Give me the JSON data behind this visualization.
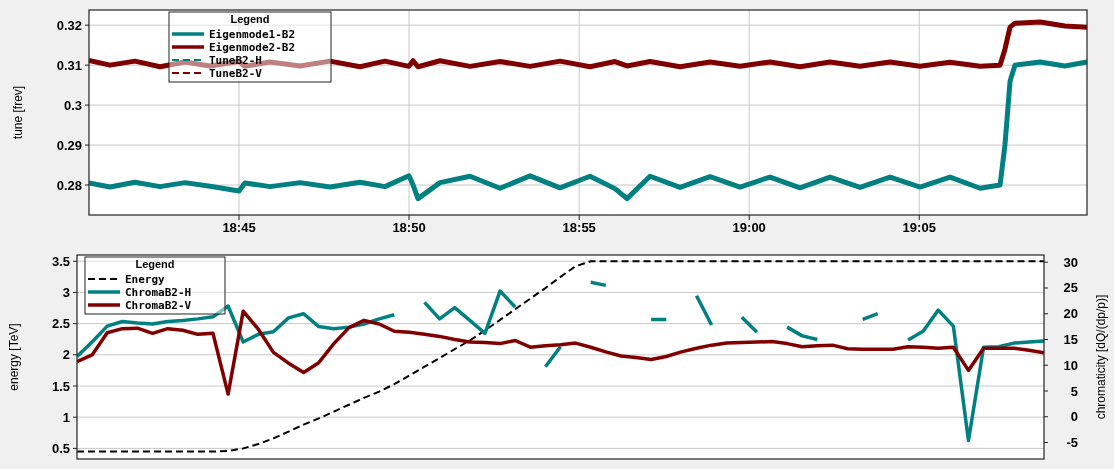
{
  "chart_data": [
    {
      "type": "line",
      "ylabel": "tune [frev]",
      "legend_title": "Legend",
      "legend": "top left",
      "grid": true,
      "marker": "none",
      "xlim": [
        18.6765,
        19.1655
      ],
      "xticks": [
        {
          "value": 18.75,
          "label": "18:45"
        },
        {
          "value": 18.8333,
          "label": "18:50"
        },
        {
          "value": 18.9167,
          "label": "18:55"
        },
        {
          "value": 19.0,
          "label": "19:00"
        },
        {
          "value": 19.0833,
          "label": "19:05"
        }
      ],
      "ylim": [
        0.2725,
        0.3238
      ],
      "yticks": [
        0.28,
        0.29,
        0.3,
        0.31,
        0.32
      ],
      "series": [
        {
          "name": "Eigenmode1-B2",
          "color": "#008080",
          "line_style": "solid",
          "x": [
            18.6765,
            18.6868,
            18.699,
            18.7113,
            18.7235,
            18.7358,
            18.75,
            18.7529,
            18.7652,
            18.7799,
            18.7946,
            18.8093,
            18.8215,
            18.8333,
            18.8353,
            18.8377,
            18.8485,
            18.8632,
            18.8779,
            18.8926,
            18.9073,
            18.922,
            18.9342,
            18.9401,
            18.9514,
            18.9661,
            18.9808,
            18.9955,
            19.0102,
            19.0249,
            19.0396,
            19.0543,
            19.069,
            19.0837,
            19.0984,
            19.1131,
            19.1229,
            19.1253,
            19.1278,
            19.1302,
            19.1425,
            19.1547,
            19.1655
          ],
          "values": [
            0.2805,
            0.2795,
            0.2807,
            0.2796,
            0.2806,
            0.2797,
            0.2785,
            0.2805,
            0.2796,
            0.2806,
            0.2795,
            0.2807,
            0.2796,
            0.2823,
            0.28,
            0.2766,
            0.2806,
            0.2822,
            0.2792,
            0.2823,
            0.2793,
            0.2822,
            0.2791,
            0.2766,
            0.2822,
            0.2794,
            0.2821,
            0.2795,
            0.282,
            0.2793,
            0.282,
            0.2794,
            0.282,
            0.2795,
            0.282,
            0.2792,
            0.28,
            0.29,
            0.306,
            0.31,
            0.3108,
            0.3098,
            0.3108
          ]
        },
        {
          "name": "Eigenmode2-B2",
          "color": "#800000",
          "line_style": "solid",
          "x": [
            18.6765,
            18.6868,
            18.699,
            18.7113,
            18.7235,
            18.7358,
            18.75,
            18.7529,
            18.7652,
            18.7799,
            18.7946,
            18.8093,
            18.8215,
            18.8333,
            18.8353,
            18.8377,
            18.8485,
            18.8632,
            18.8779,
            18.8926,
            18.9073,
            18.922,
            18.9342,
            18.9401,
            18.9514,
            18.9661,
            18.9808,
            18.9955,
            19.0102,
            19.0249,
            19.0396,
            19.0543,
            19.069,
            19.0837,
            19.0984,
            19.1131,
            19.1229,
            19.1253,
            19.1278,
            19.1302,
            19.1425,
            19.1547,
            19.1655
          ],
          "values": [
            0.3112,
            0.31,
            0.311,
            0.3096,
            0.3108,
            0.3098,
            0.3109,
            0.3097,
            0.3108,
            0.3098,
            0.311,
            0.3096,
            0.311,
            0.3097,
            0.3111,
            0.3096,
            0.3111,
            0.3097,
            0.3109,
            0.3097,
            0.311,
            0.3096,
            0.3109,
            0.3098,
            0.3109,
            0.3096,
            0.3108,
            0.3097,
            0.3108,
            0.3096,
            0.3108,
            0.3097,
            0.3108,
            0.3097,
            0.3107,
            0.3097,
            0.31,
            0.314,
            0.3195,
            0.3205,
            0.3208,
            0.3198,
            0.3195
          ]
        },
        {
          "name": "TuneB2-H",
          "color": "#008080",
          "line_style": "dashed"
        },
        {
          "name": "TuneB2-V",
          "color": "#800000",
          "line_style": "dashed"
        }
      ]
    },
    {
      "type": "line",
      "ylabel": "energy [TeV]",
      "y2label": "chromaticity [dQ/(dp/p)]",
      "legend_title": "Legend",
      "legend": "top left",
      "grid": "y",
      "marker": "none",
      "categories": [
        null,
        null,
        null,
        null,
        null,
        null,
        null,
        null,
        null,
        null,
        null,
        null,
        null,
        null,
        null,
        null,
        null,
        null,
        null,
        null,
        null,
        null,
        null,
        null,
        null,
        null,
        null,
        null,
        null,
        null,
        null,
        null,
        null,
        null,
        null,
        null,
        null,
        null,
        null,
        null,
        null,
        null,
        null,
        null,
        null,
        null,
        null,
        null,
        null,
        null,
        null,
        null,
        null,
        null,
        null,
        null,
        null,
        null,
        null,
        null,
        null,
        null,
        null,
        null,
        null
      ],
      "ylim": [
        0.33,
        3.6
      ],
      "yticks": [
        0.5,
        1,
        1.5,
        2,
        2.5,
        3,
        3.5
      ],
      "y2lim": [
        -8.2,
        31.4
      ],
      "y2ticks": [
        -5,
        0,
        5,
        10,
        15,
        20,
        25,
        30
      ],
      "series": [
        {
          "name": "Energy",
          "color": "#000000",
          "line_style": "dashed",
          "values": [
            0.45,
            0.45,
            0.45,
            0.45,
            0.45,
            0.45,
            0.45,
            0.45,
            0.45,
            0.45,
            0.46,
            0.5,
            0.57,
            0.66,
            0.77,
            0.88,
            0.98,
            1.09,
            1.2,
            1.31,
            1.41,
            1.53,
            1.67,
            1.81,
            1.95,
            2.09,
            2.23,
            2.39,
            2.56,
            2.73,
            2.9,
            3.07,
            3.25,
            3.42,
            3.5,
            3.5,
            3.5,
            3.5,
            3.5,
            3.5,
            3.5,
            3.5,
            3.5,
            3.5,
            3.5,
            3.5,
            3.5,
            3.5,
            3.5,
            3.5,
            3.5,
            3.5,
            3.5,
            3.5,
            3.5,
            3.5,
            3.5,
            3.5,
            3.5,
            3.5,
            3.5,
            3.5,
            3.5,
            3.5,
            3.5
          ]
        },
        {
          "name": "ChromaB2-H",
          "color": "#008080",
          "line_style": "solid",
          "axis": "y2",
          "values": [
            11.7,
            14.5,
            17.6,
            18.5,
            18.2,
            18,
            18.5,
            18.7,
            19,
            19.4,
            21.5,
            14.5,
            16,
            16.5,
            19.2,
            20,
            17.5,
            17.1,
            17.4,
            18,
            19,
            19.8,
            null,
            22.2,
            19,
            21.2,
            18.7,
            16.2,
            24.4,
            21.3,
            null,
            9.7,
            13.6,
            null,
            26.1,
            25.5,
            null,
            null,
            18.9,
            18.9,
            null,
            23.5,
            17.8,
            null,
            19.3,
            16.4,
            null,
            17.4,
            15.7,
            15,
            null,
            null,
            18.9,
            20,
            null,
            14.9,
            16.6,
            20.7,
            17.6,
            -4.6,
            13.5,
            13.6,
            14.3,
            14.5,
            14.7
          ]
        },
        {
          "name": "ChromaB2-V",
          "color": "#800000",
          "line_style": "solid",
          "axis": "y2",
          "values": [
            10.7,
            12,
            16.3,
            17.1,
            17.2,
            16.2,
            17.1,
            16.8,
            16,
            16.2,
            4.4,
            20.5,
            17,
            12.5,
            10.4,
            8.6,
            10.5,
            14.2,
            17.3,
            18.7,
            18,
            16.6,
            16.4,
            16,
            15.6,
            15,
            14.5,
            14.4,
            14.2,
            14.8,
            13.5,
            13.8,
            14,
            14.3,
            13.5,
            12.6,
            11.8,
            11.5,
            11.1,
            11.7,
            12.6,
            13.3,
            13.9,
            14.3,
            14.4,
            14.5,
            14.6,
            14.2,
            13.6,
            13.8,
            13.9,
            13.2,
            13.1,
            13.1,
            13.1,
            13.6,
            13.5,
            13.3,
            13.5,
            9,
            13.3,
            13.3,
            13.3,
            12.9,
            12.4
          ]
        }
      ]
    }
  ]
}
